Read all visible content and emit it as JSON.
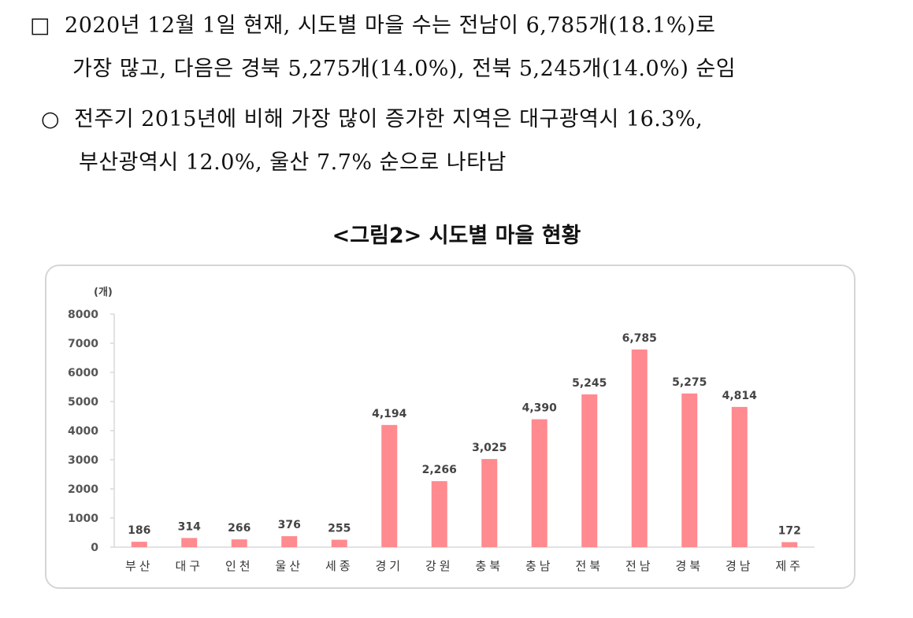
{
  "text": {
    "para1_bullet": "□",
    "para1_line1": "2020년 12월 1일 현재, 시도별 마을 수는 전남이 6,785개(18.1%)로",
    "para1_line2": "가장 많고, 다음은 경북 5,275개(14.0%), 전북 5,245개(14.0%) 순임",
    "para2_bullet": "○",
    "para2_line1": "전주기 2015년에 비해 가장 많이 증가한 지역은 대구광역시 16.3%,",
    "para2_line2": "부산광역시 12.0%, 울산 7.7% 순으로 나타남",
    "figure_title": "<그림2> 시도별 마을 현황"
  },
  "chart_data": {
    "type": "bar",
    "title": "<그림2> 시도별 마을 현황",
    "ylabel": "(개)",
    "xlabel": "",
    "ylim": [
      0,
      8000
    ],
    "yticks": [
      0,
      1000,
      2000,
      3000,
      4000,
      5000,
      6000,
      7000,
      8000
    ],
    "categories": [
      "부산",
      "대구",
      "인천",
      "울산",
      "세종",
      "경기",
      "강원",
      "충북",
      "충남",
      "전북",
      "전남",
      "경북",
      "경남",
      "제주"
    ],
    "values": [
      186,
      314,
      266,
      376,
      255,
      4194,
      2266,
      3025,
      4390,
      5245,
      6785,
      5275,
      4814,
      172
    ],
    "data_labels": [
      "186",
      "314",
      "266",
      "376",
      "255",
      "4,194",
      "2,266",
      "3,025",
      "4,390",
      "5,245",
      "6,785",
      "5,275",
      "4,814",
      "172"
    ],
    "bar_color": "#ff8a8f",
    "grid": false,
    "legend": "none"
  }
}
